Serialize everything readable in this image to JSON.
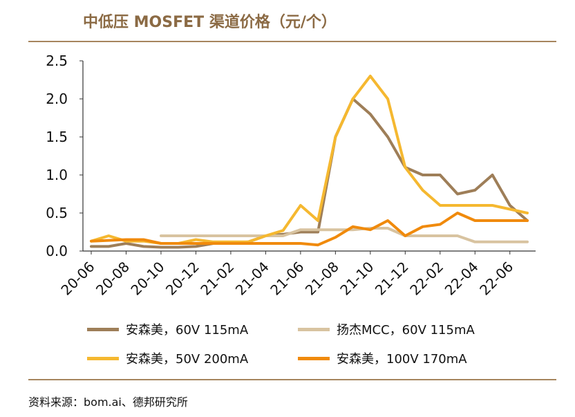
{
  "title": "中低压 MOSFET 渠道价格（元/个）",
  "source": "资料来源：bom.ai、德邦研究所",
  "colors": {
    "s1": "#9E7E58",
    "s2": "#D8C3A0",
    "s3": "#F5B830",
    "s4": "#F08A0C",
    "rule": "#A6855E",
    "title": "#8B6A44"
  },
  "chart_data": {
    "type": "line",
    "ylim": [
      0,
      2.5
    ],
    "yticks": [
      "0.0",
      "0.5",
      "1.0",
      "1.5",
      "2.0",
      "2.5"
    ],
    "ytick_values": [
      0,
      0.5,
      1.0,
      1.5,
      2.0,
      2.5
    ],
    "xtick_labels": [
      "20-06",
      "20-08",
      "20-10",
      "20-12",
      "21-02",
      "21-04",
      "21-06",
      "21-08",
      "21-10",
      "21-12",
      "22-02",
      "22-04",
      "22-06"
    ],
    "xtick_indices": [
      0,
      2,
      4,
      6,
      8,
      10,
      12,
      14,
      16,
      18,
      20,
      22,
      24
    ],
    "n_points": 26,
    "grid": false,
    "legend_position": "bottom",
    "series": [
      {
        "name": "安森美，60V 115mA",
        "color": "#9E7E58",
        "start": 0,
        "values": [
          0.06,
          0.06,
          0.1,
          0.06,
          0.05,
          0.05,
          0.06,
          0.1,
          0.1,
          0.12,
          0.2,
          0.22,
          0.25,
          0.25,
          1.5,
          2.0,
          1.8,
          1.5,
          1.1,
          1.0,
          1.0,
          0.75,
          0.8,
          1.0,
          0.6,
          0.4
        ]
      },
      {
        "name": "扬杰MCC，60V 115mA",
        "color": "#D8C3A0",
        "start": 4,
        "values": [
          0.2,
          0.2,
          0.2,
          0.2,
          0.2,
          0.2,
          0.2,
          0.2,
          0.28,
          0.28,
          0.28,
          0.28,
          0.3,
          0.3,
          0.2,
          0.2,
          0.2,
          0.2,
          0.12,
          0.12,
          0.12,
          0.12
        ]
      },
      {
        "name": "安森美，50V 200mA",
        "color": "#F5B830",
        "start": 0,
        "values": [
          0.13,
          0.2,
          0.13,
          0.13,
          0.1,
          0.1,
          0.15,
          0.12,
          0.12,
          0.12,
          0.2,
          0.27,
          0.6,
          0.4,
          1.5,
          2.0,
          2.3,
          2.0,
          1.1,
          0.8,
          0.6,
          0.6,
          0.6,
          0.6,
          0.55,
          0.5
        ]
      },
      {
        "name": "安森美，100V 170mA",
        "color": "#F08A0C",
        "start": 0,
        "values": [
          0.13,
          0.14,
          0.15,
          0.15,
          0.1,
          0.1,
          0.1,
          0.1,
          0.1,
          0.1,
          0.1,
          0.1,
          0.1,
          0.08,
          0.18,
          0.32,
          0.28,
          0.4,
          0.2,
          0.32,
          0.35,
          0.5,
          0.4,
          0.4,
          0.4,
          0.4
        ]
      }
    ]
  }
}
